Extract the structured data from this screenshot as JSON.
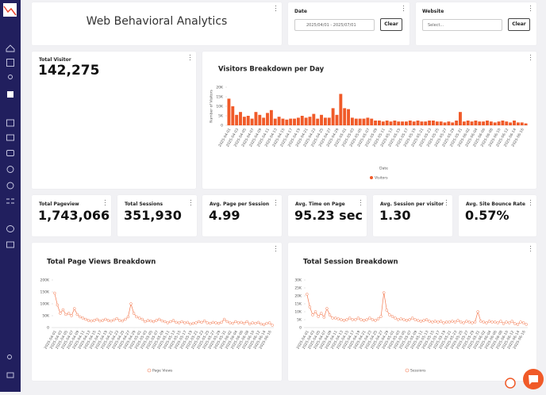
{
  "header": {
    "title": "Web Behavioral Analytics"
  },
  "filters": {
    "date": {
      "label": "Date",
      "value": "2025/04/01 - 2025/07/01",
      "button": "Clear"
    },
    "website": {
      "label": "Website",
      "placeholder": "Select...",
      "button": "Clear"
    }
  },
  "total_visitor": {
    "label": "Total Visitor",
    "value": "142,275"
  },
  "stats": [
    {
      "label": "Total Pageview",
      "value": "1,743,066"
    },
    {
      "label": "Total Sessions",
      "value": "351,930"
    },
    {
      "label": "Avg. Page per Session",
      "value": "4.99"
    },
    {
      "label": "Avg. Time on Page",
      "value": "95.23 sec"
    },
    {
      "label": "Avg. Session per visitor",
      "value": "1.30"
    },
    {
      "label": "Avg. Site Bounce Rate",
      "value": "0.57%"
    }
  ],
  "chart_data": [
    {
      "type": "bar",
      "title": "Visitors Breakdown per Day",
      "y_label": "Number of Visitors",
      "x_label": "Date",
      "categories": [
        "2025-04-01",
        null,
        "2025-04-03",
        null,
        "2025-04-05",
        null,
        "2025-04-07",
        null,
        "2025-04-09",
        null,
        "2025-04-11",
        null,
        "2025-04-13",
        null,
        "2025-04-15",
        null,
        "2025-04-17",
        null,
        "2025-04-19",
        null,
        "2025-04-21",
        null,
        "2025-04-23",
        null,
        "2025-04-25",
        null,
        "2025-04-27",
        null,
        "2025-04-29",
        null,
        "2025-05-01",
        null,
        "2025-05-03",
        null,
        "2025-05-05",
        null,
        "2025-05-07",
        null,
        "2025-05-09",
        null,
        "2025-05-11",
        null,
        "2025-05-13",
        null,
        "2025-05-15",
        null,
        "2025-05-17",
        null,
        "2025-05-19",
        null,
        "2025-05-21",
        null,
        "2025-05-23",
        null,
        "2025-05-25",
        null,
        "2025-05-27",
        null,
        "2025-05-29",
        null,
        "2025-05-31",
        null,
        "2025-06-02",
        null,
        "2025-06-04",
        null,
        "2025-06-06",
        null,
        "2025-06-08",
        null,
        "2025-06-10",
        null,
        "2025-06-12",
        null,
        "2025-06-14",
        null,
        "2025-06-16",
        null
      ],
      "series": [
        {
          "name": "Visitors",
          "color": "#f05a28",
          "values": [
            14000,
            10000,
            5500,
            7000,
            4500,
            5000,
            3500,
            7000,
            5500,
            4000,
            6500,
            8000,
            3500,
            4500,
            3500,
            3000,
            3500,
            3500,
            4000,
            5000,
            4000,
            4500,
            6000,
            3500,
            5500,
            4000,
            4000,
            9000,
            5500,
            16500,
            9000,
            8500,
            4000,
            3500,
            3500,
            3500,
            4000,
            3500,
            2500,
            2500,
            2000,
            2500,
            2000,
            2500,
            2000,
            2000,
            2000,
            2500,
            2000,
            2500,
            2000,
            2000,
            2500,
            2500,
            2000,
            2000,
            1500,
            2000,
            1500,
            2500,
            7000,
            2000,
            2500,
            2000,
            2500,
            2000,
            2000,
            2500,
            2000,
            1500,
            2000,
            2500,
            2000,
            1500,
            2500,
            1500,
            1500,
            1000
          ]
        }
      ],
      "ylim": [
        0,
        20000
      ],
      "yticks": [
        0,
        {
          "value": 5000,
          "label": "5K"
        },
        {
          "value": 10000,
          "label": "10K"
        },
        {
          "value": 15000,
          "label": "15K"
        },
        {
          "value": 20000,
          "label": "20K"
        }
      ],
      "grid": false
    },
    {
      "type": "line",
      "title": "Total Page Views Breakdown",
      "categories": [
        "2025-04-01",
        null,
        "2025-04-03",
        null,
        "2025-04-05",
        null,
        "2025-04-07",
        null,
        "2025-04-09",
        null,
        "2025-04-11",
        null,
        "2025-04-13",
        null,
        "2025-04-15",
        null,
        "2025-04-17",
        null,
        "2025-04-19",
        null,
        "2025-04-21",
        null,
        "2025-04-23",
        null,
        "2025-04-25",
        null,
        "2025-04-27",
        null,
        "2025-04-29",
        null,
        "2025-05-01",
        null,
        "2025-05-03",
        null,
        "2025-05-05",
        null,
        "2025-05-07",
        null,
        "2025-05-09",
        null,
        "2025-05-11",
        null,
        "2025-05-13",
        null,
        "2025-05-15",
        null,
        "2025-05-17",
        null,
        "2025-05-19",
        null,
        "2025-05-21",
        null,
        "2025-05-23",
        null,
        "2025-05-25",
        null,
        "2025-05-27",
        null,
        "2025-05-29",
        null,
        "2025-05-31",
        null,
        "2025-06-02",
        null,
        "2025-06-04",
        null,
        "2025-06-06",
        null,
        "2025-06-08",
        null,
        "2025-06-10",
        null,
        "2025-06-12",
        null,
        "2025-06-14",
        null,
        "2025-06-16",
        null
      ],
      "series": [
        {
          "name": "Page Views",
          "color": "#f47b52",
          "values": [
            145000,
            95000,
            60000,
            75000,
            55000,
            60000,
            50000,
            80000,
            55000,
            45000,
            40000,
            35000,
            30000,
            28000,
            30000,
            35000,
            28000,
            30000,
            35000,
            30000,
            28000,
            32000,
            38000,
            30000,
            28000,
            35000,
            45000,
            100000,
            60000,
            45000,
            40000,
            35000,
            25000,
            30000,
            28000,
            25000,
            30000,
            35000,
            28000,
            25000,
            20000,
            25000,
            30000,
            22000,
            20000,
            25000,
            20000,
            22000,
            15000,
            18000,
            20000,
            25000,
            22000,
            28000,
            20000,
            18000,
            22000,
            20000,
            18000,
            22000,
            35000,
            25000,
            20000,
            18000,
            25000,
            20000,
            22000,
            18000,
            25000,
            15000,
            20000,
            18000,
            22000,
            15000,
            12000,
            18000,
            20000,
            10000
          ]
        }
      ],
      "ylim": [
        0,
        200000
      ],
      "yticks": [
        0,
        {
          "value": 50000,
          "label": "50K"
        },
        {
          "value": 100000,
          "label": "100K"
        },
        {
          "value": 150000,
          "label": "150K"
        },
        {
          "value": 200000,
          "label": "200K"
        }
      ],
      "grid": false
    },
    {
      "type": "line",
      "title": "Total Session Breakdown",
      "categories": [
        "2025-04-01",
        null,
        "2025-04-03",
        null,
        "2025-04-05",
        null,
        "2025-04-07",
        null,
        "2025-04-09",
        null,
        "2025-04-11",
        null,
        "2025-04-13",
        null,
        "2025-04-15",
        null,
        "2025-04-17",
        null,
        "2025-04-19",
        null,
        "2025-04-21",
        null,
        "2025-04-23",
        null,
        "2025-04-25",
        null,
        "2025-04-27",
        null,
        "2025-04-29",
        null,
        "2025-05-01",
        null,
        "2025-05-03",
        null,
        "2025-05-05",
        null,
        "2025-05-07",
        null,
        "2025-05-09",
        null,
        "2025-05-11",
        null,
        "2025-05-13",
        null,
        "2025-05-15",
        null,
        "2025-05-17",
        null,
        "2025-05-19",
        null,
        "2025-05-21",
        null,
        "2025-05-23",
        null,
        "2025-05-25",
        null,
        "2025-05-27",
        null,
        "2025-05-29",
        null,
        "2025-05-31",
        null,
        "2025-06-02",
        null,
        "2025-06-04",
        null,
        "2025-06-06",
        null,
        "2025-06-08",
        null,
        "2025-06-10",
        null,
        "2025-06-12",
        null,
        "2025-06-14",
        null,
        "2025-06-16",
        null
      ],
      "series": [
        {
          "name": "Sessions",
          "color": "#f47b52",
          "values": [
            21000,
            13000,
            8000,
            10000,
            7000,
            9000,
            6500,
            12000,
            8000,
            6000,
            6000,
            5500,
            5000,
            4500,
            5000,
            6000,
            5000,
            5000,
            6000,
            5000,
            4500,
            5000,
            6000,
            5000,
            4500,
            5500,
            7000,
            22000,
            11000,
            8000,
            7000,
            6000,
            5000,
            5500,
            5000,
            4500,
            5000,
            6000,
            5000,
            4500,
            4000,
            4500,
            5000,
            4000,
            3500,
            4000,
            3500,
            4000,
            3000,
            3500,
            3500,
            4000,
            3500,
            4500,
            3500,
            3000,
            4000,
            3500,
            3000,
            3500,
            10000,
            4000,
            3500,
            3000,
            4000,
            3500,
            3500,
            3000,
            4000,
            2500,
            3500,
            3000,
            4000,
            2500,
            2000,
            3500,
            3000,
            2000
          ]
        }
      ],
      "ylim": [
        0,
        30000
      ],
      "yticks": [
        0,
        {
          "value": 5000,
          "label": "5K"
        },
        {
          "value": 10000,
          "label": "10K"
        },
        {
          "value": 15000,
          "label": "15K"
        },
        {
          "value": 20000,
          "label": "20K"
        },
        {
          "value": 25000,
          "label": "25K"
        },
        {
          "value": 30000,
          "label": "30K"
        }
      ],
      "grid": false
    }
  ]
}
